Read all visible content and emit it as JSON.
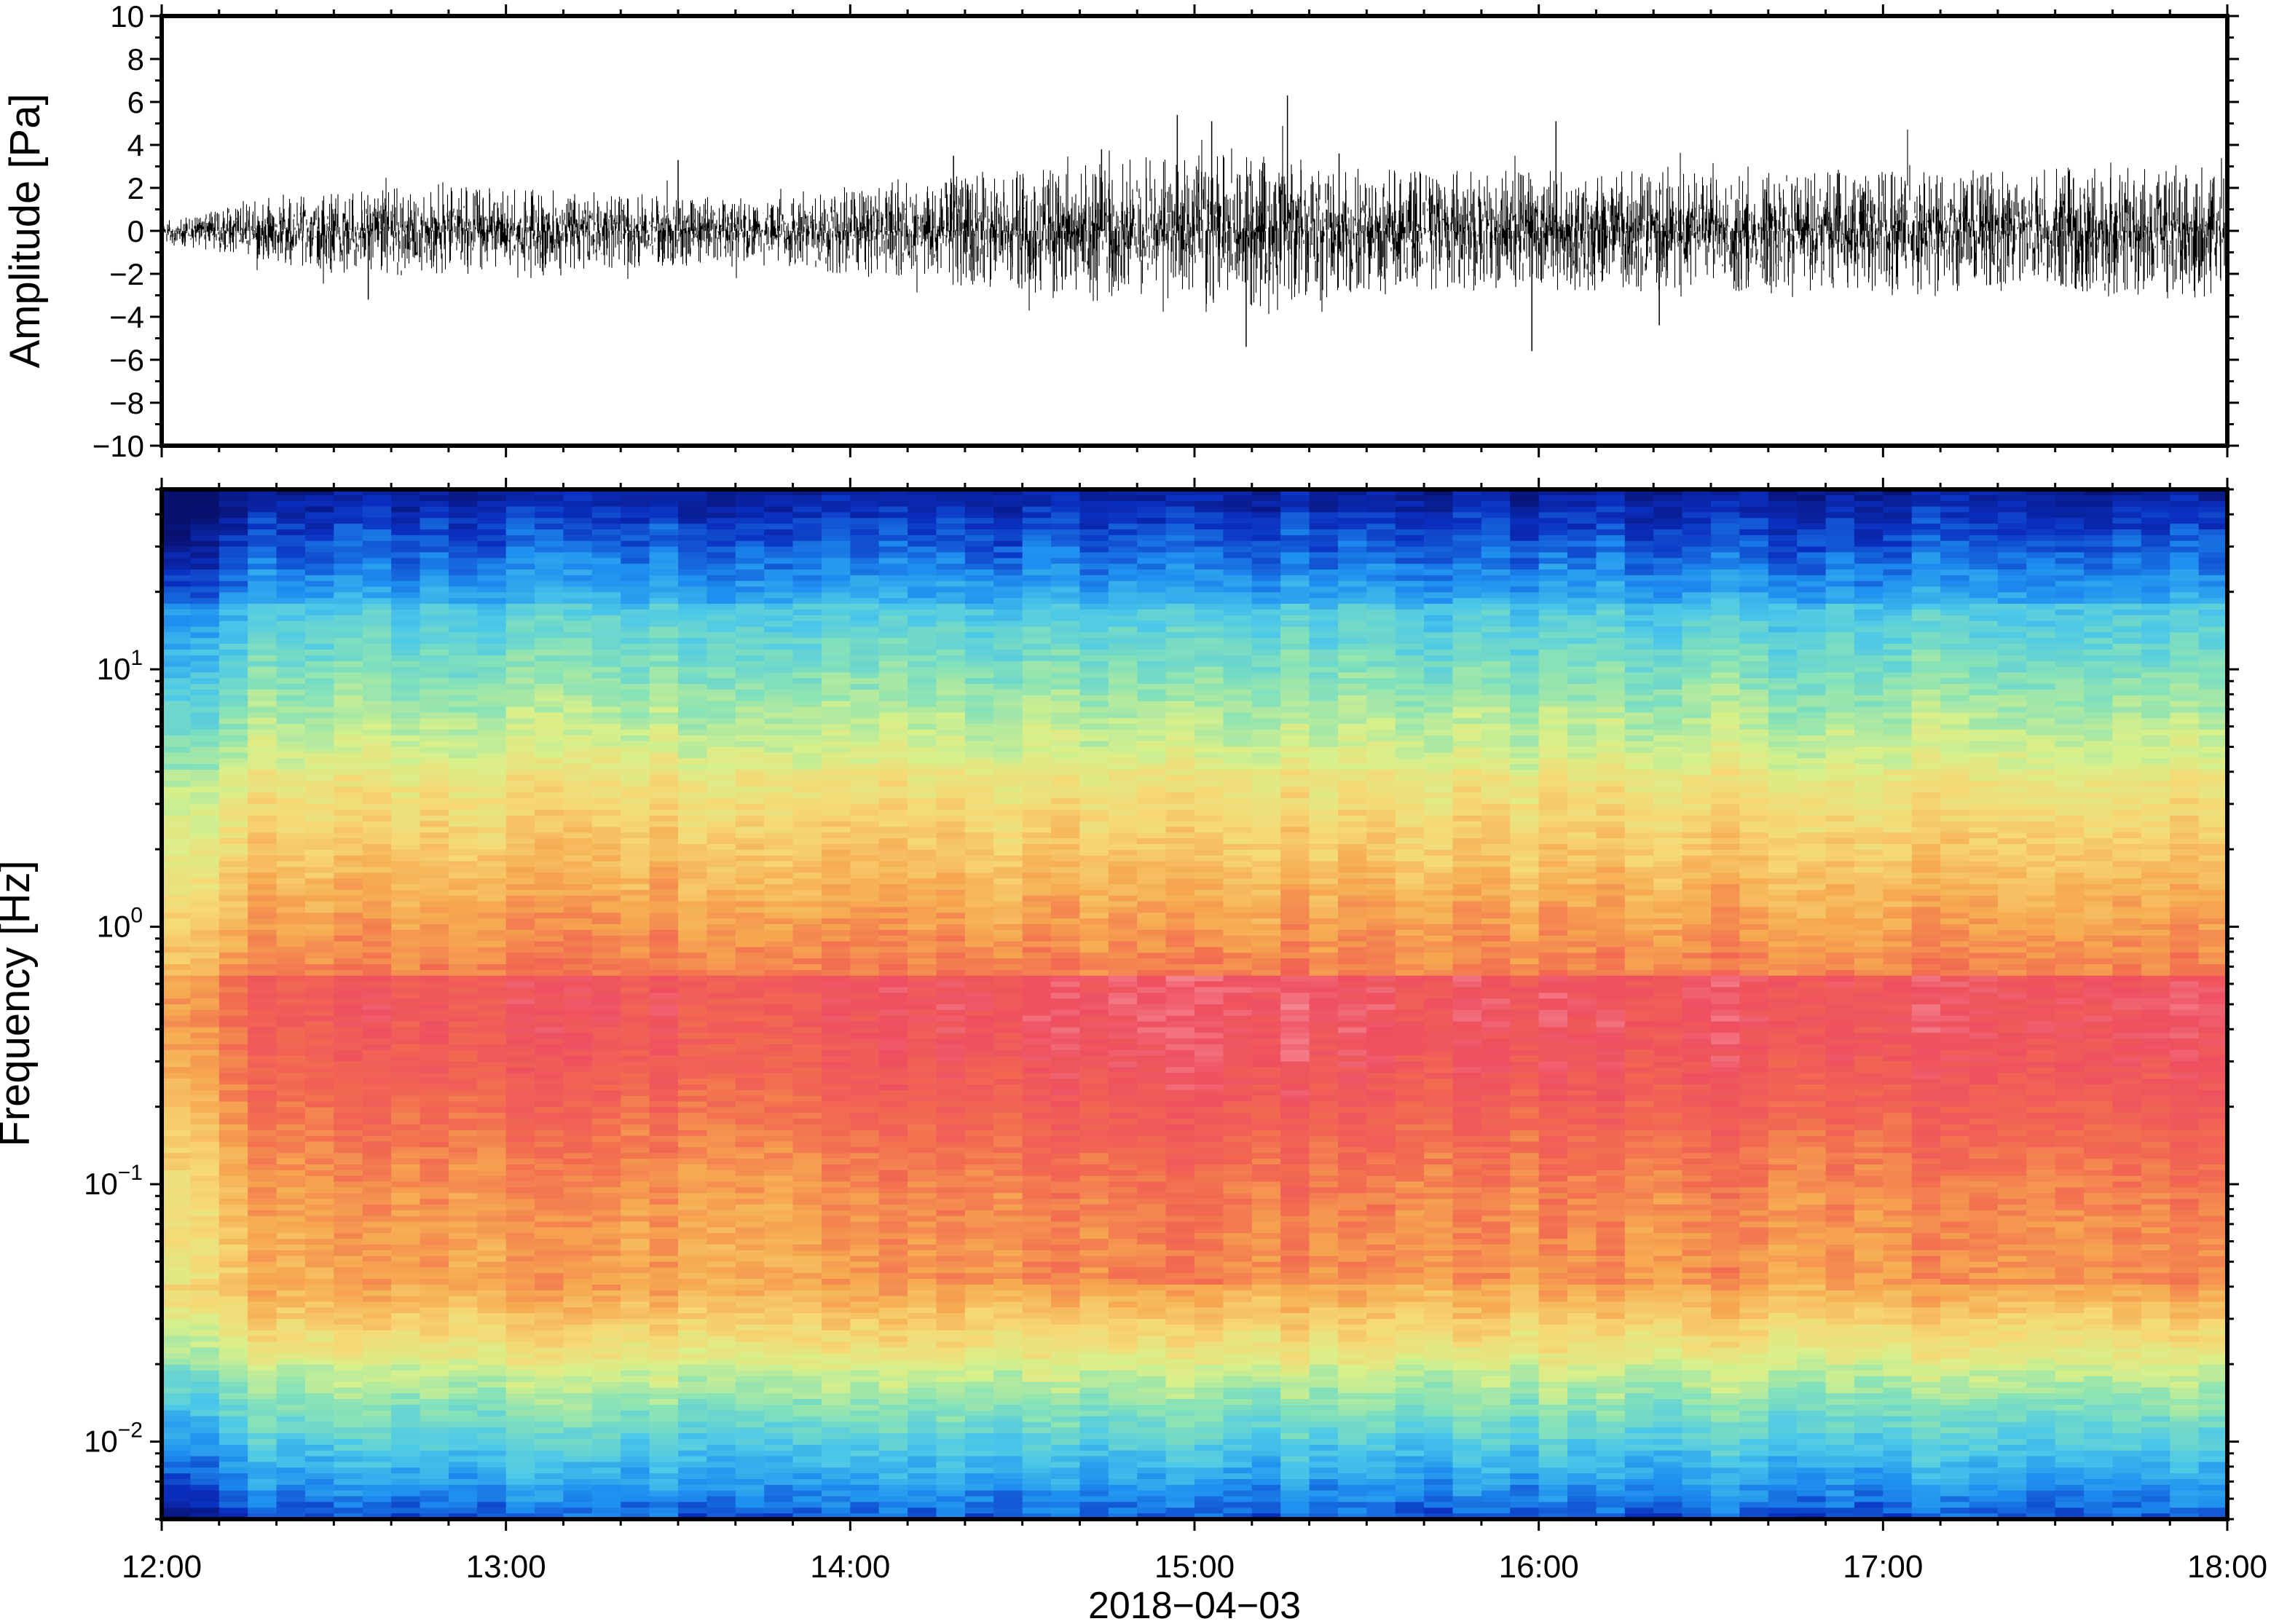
{
  "chart_data": [
    {
      "type": "line",
      "ylabel": "Amplitude [Pa]",
      "ylim": [
        -10,
        10
      ],
      "yticks": [
        "10",
        "8",
        "6",
        "4",
        "2",
        "0",
        "−2",
        "−4",
        "−6",
        "−8",
        "−10"
      ],
      "ytick_values": [
        10,
        8,
        6,
        4,
        2,
        0,
        -2,
        -4,
        -6,
        -8,
        -10
      ],
      "xlim": [
        "12:00",
        "18:00"
      ],
      "envelope": {
        "t_hours": [
          12.0,
          12.25,
          12.5,
          12.75,
          13.0,
          13.25,
          13.5,
          13.75,
          14.0,
          14.25,
          14.5,
          14.75,
          15.0,
          15.25,
          15.5,
          15.75,
          16.0,
          16.25,
          16.5,
          16.75,
          17.0,
          17.25,
          17.5,
          17.75,
          18.0
        ],
        "amplitude_pa": [
          0.4,
          0.9,
          1.4,
          1.5,
          1.4,
          1.3,
          1.2,
          1.0,
          1.5,
          1.8,
          2.0,
          2.4,
          2.6,
          2.5,
          2.1,
          2.0,
          2.0,
          2.0,
          2.0,
          2.0,
          2.0,
          2.0,
          2.1,
          2.2,
          2.3
        ]
      },
      "peaks": [
        {
          "t": 14.73,
          "v": 3.8
        },
        {
          "t": 14.95,
          "v": 5.4
        },
        {
          "t": 15.05,
          "v": 5.1
        },
        {
          "t": 15.15,
          "v": -5.4
        },
        {
          "t": 15.27,
          "v": 6.3
        },
        {
          "t": 15.42,
          "v": 3.6
        },
        {
          "t": 15.98,
          "v": -5.6
        },
        {
          "t": 16.05,
          "v": 5.1
        },
        {
          "t": 16.35,
          "v": -4.4
        },
        {
          "t": 13.5,
          "v": 3.3
        },
        {
          "t": 14.3,
          "v": 3.5
        },
        {
          "t": 12.6,
          "v": -3.2
        }
      ]
    },
    {
      "type": "heatmap",
      "ylabel": "Frequency [Hz]",
      "yscale": "log",
      "ylim": [
        0.005,
        50
      ],
      "yticks": [
        {
          "value": 10,
          "base": "10",
          "exp": "1"
        },
        {
          "value": 1,
          "base": "10",
          "exp": "0"
        },
        {
          "value": 0.1,
          "base": "10",
          "exp": "−1"
        },
        {
          "value": 0.01,
          "base": "10",
          "exp": "−2"
        }
      ],
      "xlabel": "2018−04−03",
      "xticks": [
        "12:00",
        "13:00",
        "14:00",
        "15:00",
        "16:00",
        "17:00",
        "18:00"
      ],
      "xtick_hours": [
        12,
        13,
        14,
        15,
        16,
        17,
        18
      ],
      "colormap": [
        "#08106e",
        "#0a2fc0",
        "#1e8ff0",
        "#4cc8e8",
        "#86e2b8",
        "#d8f08a",
        "#f6d874",
        "#f6a850",
        "#f26a50",
        "#ee5060",
        "#f8a0a8"
      ]
    }
  ],
  "colors": {
    "frame": "#000000",
    "trace": "#000000",
    "background": "#ffffff"
  }
}
